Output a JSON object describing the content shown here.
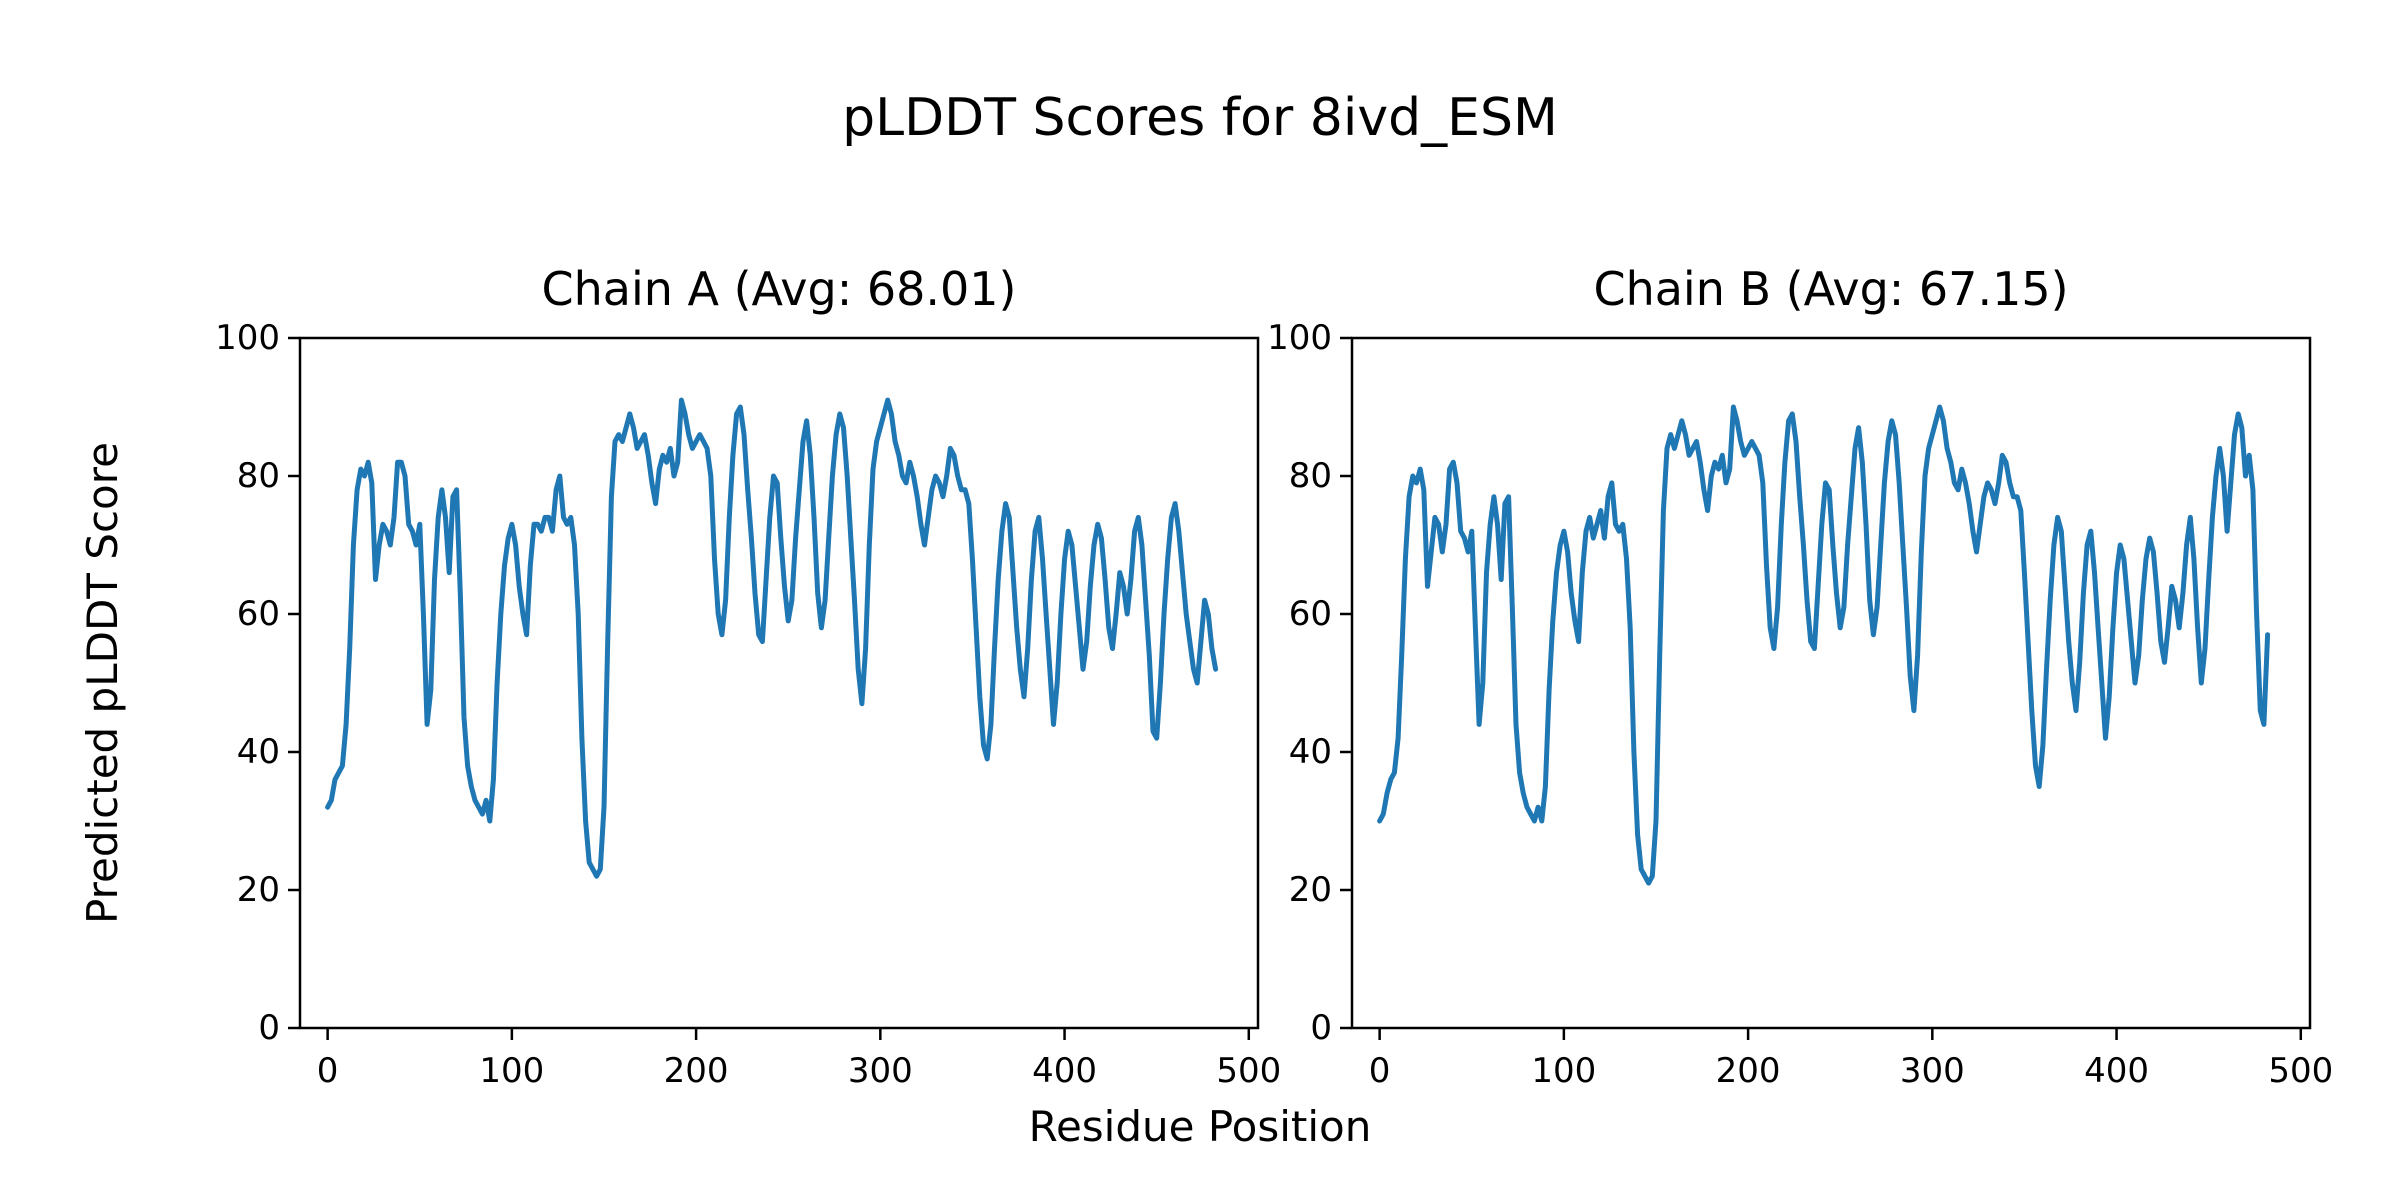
{
  "figure": {
    "suptitle": "pLDDT Scores for 8ivd_ESM",
    "xlabel": "Residue Position",
    "ylabel": "Predicted pLDDT Score"
  },
  "chart_data": {
    "type": "line",
    "suptitle": "pLDDT Scores for 8ivd_ESM",
    "xlabel": "Residue Position",
    "ylabel": "Predicted pLDDT Score",
    "line_color": "#1f77b4",
    "background_color": "#ffffff",
    "xlim": [
      -15,
      505
    ],
    "ylim": [
      0,
      100
    ],
    "x_ticks": [
      0,
      100,
      200,
      300,
      400,
      500
    ],
    "y_ticks": [
      0,
      20,
      40,
      60,
      80,
      100
    ],
    "grid": false,
    "legend": "none",
    "x_start": 0,
    "x_step": 2,
    "subplots": [
      {
        "title": "Chain A (Avg: 68.01)",
        "chain": "A",
        "average_plddt": 68.01,
        "values": [
          32,
          33,
          36,
          37,
          38,
          44,
          55,
          70,
          78,
          81,
          80,
          82,
          79,
          65,
          70,
          73,
          72,
          70,
          74,
          82,
          82,
          80,
          73,
          72,
          70,
          73,
          60,
          44,
          49,
          65,
          74,
          78,
          74,
          66,
          77,
          78,
          63,
          45,
          38,
          35,
          33,
          32,
          31,
          33,
          30,
          36,
          50,
          60,
          67,
          71,
          73,
          70,
          64,
          60,
          57,
          67,
          73,
          73,
          72,
          74,
          74,
          72,
          78,
          80,
          74,
          73,
          74,
          70,
          60,
          42,
          30,
          24,
          23,
          22,
          23,
          32,
          56,
          77,
          85,
          86,
          85,
          87,
          89,
          87,
          84,
          85,
          86,
          83,
          79,
          76,
          81,
          83,
          82,
          84,
          80,
          82,
          91,
          89,
          86,
          84,
          85,
          86,
          85,
          84,
          80,
          68,
          60,
          57,
          62,
          74,
          83,
          89,
          90,
          86,
          78,
          71,
          63,
          57,
          56,
          65,
          74,
          80,
          79,
          71,
          64,
          59,
          62,
          71,
          78,
          85,
          88,
          83,
          74,
          63,
          58,
          62,
          71,
          80,
          86,
          89,
          87,
          80,
          71,
          62,
          52,
          47,
          55,
          70,
          81,
          85,
          87,
          89,
          91,
          89,
          85,
          83,
          80,
          79,
          82,
          80,
          77,
          73,
          70,
          74,
          78,
          80,
          79,
          77,
          80,
          84,
          83,
          80,
          78,
          78,
          76,
          68,
          58,
          48,
          41,
          39,
          44,
          55,
          65,
          72,
          76,
          74,
          66,
          58,
          52,
          48,
          55,
          65,
          72,
          74,
          68,
          60,
          52,
          44,
          50,
          60,
          68,
          72,
          70,
          64,
          58,
          52,
          56,
          64,
          70,
          73,
          71,
          65,
          58,
          55,
          60,
          66,
          64,
          60,
          65,
          72,
          74,
          70,
          62,
          54,
          43,
          42,
          50,
          60,
          68,
          74,
          76,
          72,
          66,
          60,
          56,
          52,
          50,
          56,
          62,
          60,
          55,
          52
        ]
      },
      {
        "title": "Chain B (Avg: 67.15)",
        "chain": "B",
        "average_plddt": 67.15,
        "values": [
          30,
          31,
          34,
          36,
          37,
          42,
          54,
          68,
          77,
          80,
          79,
          81,
          78,
          64,
          69,
          74,
          73,
          69,
          73,
          81,
          82,
          79,
          72,
          71,
          69,
          72,
          58,
          44,
          50,
          66,
          73,
          77,
          73,
          65,
          76,
          77,
          61,
          44,
          37,
          34,
          32,
          31,
          30,
          32,
          30,
          35,
          49,
          59,
          66,
          70,
          72,
          69,
          63,
          59,
          56,
          66,
          72,
          74,
          71,
          73,
          75,
          71,
          77,
          79,
          73,
          72,
          73,
          68,
          58,
          40,
          28,
          23,
          22,
          21,
          22,
          30,
          54,
          75,
          84,
          86,
          84,
          86,
          88,
          86,
          83,
          84,
          85,
          82,
          78,
          75,
          80,
          82,
          81,
          83,
          79,
          81,
          90,
          88,
          85,
          83,
          84,
          85,
          84,
          83,
          79,
          67,
          58,
          55,
          61,
          73,
          82,
          88,
          89,
          85,
          77,
          70,
          62,
          56,
          55,
          64,
          73,
          79,
          78,
          70,
          63,
          58,
          61,
          70,
          77,
          84,
          87,
          82,
          73,
          62,
          57,
          61,
          70,
          79,
          85,
          88,
          86,
          79,
          70,
          61,
          51,
          46,
          54,
          69,
          80,
          84,
          86,
          88,
          90,
          88,
          84,
          82,
          79,
          78,
          81,
          79,
          76,
          72,
          69,
          73,
          77,
          79,
          78,
          76,
          79,
          83,
          82,
          79,
          77,
          77,
          75,
          66,
          56,
          46,
          38,
          35,
          41,
          52,
          62,
          70,
          74,
          72,
          64,
          56,
          50,
          46,
          53,
          63,
          70,
          72,
          66,
          58,
          50,
          42,
          48,
          58,
          66,
          70,
          68,
          62,
          56,
          50,
          54,
          62,
          68,
          71,
          69,
          63,
          56,
          53,
          58,
          64,
          62,
          58,
          63,
          70,
          74,
          68,
          58,
          50,
          55,
          65,
          74,
          80,
          84,
          80,
          72,
          79,
          86,
          89,
          87,
          80,
          83,
          78,
          60,
          46,
          44,
          57
        ]
      }
    ]
  }
}
